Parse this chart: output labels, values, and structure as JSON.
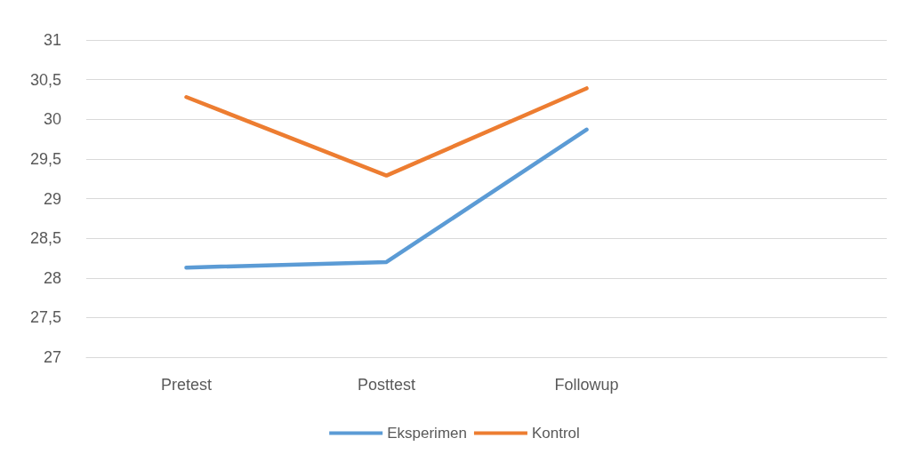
{
  "chart_data": {
    "type": "line",
    "categories": [
      "Pretest",
      "Posttest",
      "Followup",
      null
    ],
    "series": [
      {
        "name": "Eksperimen",
        "color": "#5b9bd5",
        "values": [
          28.13,
          28.2,
          29.87,
          null
        ]
      },
      {
        "name": "Kontrol",
        "color": "#ed7d31",
        "values": [
          30.28,
          29.29,
          30.39,
          null
        ]
      }
    ],
    "ylim": [
      27,
      31
    ],
    "yticks": [
      27,
      {
        "value": 27.5,
        "label": "27,5"
      },
      28,
      {
        "value": 28.5,
        "label": "28,5"
      },
      29,
      {
        "value": 29.5,
        "label": "29,5"
      },
      30,
      {
        "value": 30.5,
        "label": "30,5"
      },
      31
    ],
    "grid": "y",
    "legend": "bottom",
    "marker": "none",
    "line_style": "solid"
  }
}
